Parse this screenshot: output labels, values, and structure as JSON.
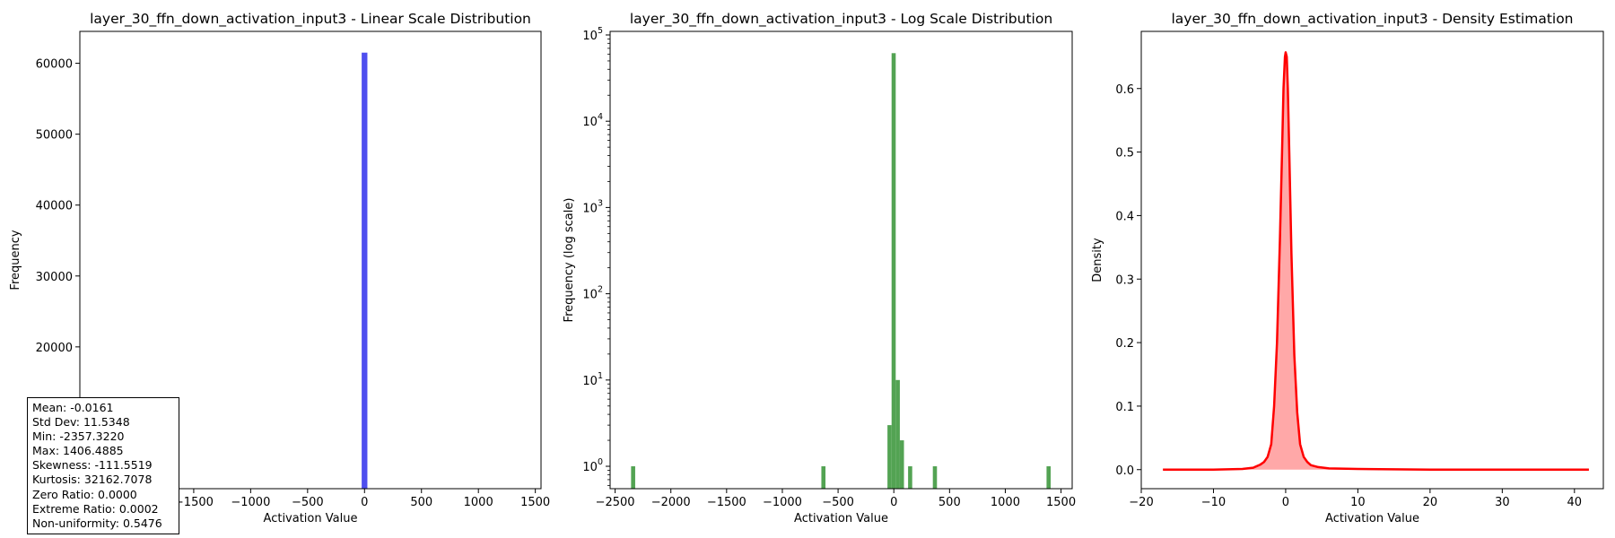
{
  "chart_data": [
    {
      "type": "bar",
      "title": "layer_30_ffn_down_activation_input3 - Linear Scale Distribution",
      "xlabel": "Activation Value",
      "ylabel": "Frequency",
      "xlim": [
        -2500,
        1550
      ],
      "ylim": [
        0,
        64500
      ],
      "xticks": [
        -1500,
        -1000,
        -500,
        0,
        500,
        1000,
        1500
      ],
      "xtick_labels": [
        "−1500",
        "−1000",
        "−500",
        "0",
        "500",
        "1000",
        "1500"
      ],
      "yticks": [
        20000,
        30000,
        40000,
        50000,
        60000
      ],
      "ytick_labels": [
        "20000",
        "30000",
        "40000",
        "50000",
        "60000"
      ],
      "bars": [
        {
          "x0": -25,
          "x1": 25,
          "value": 61500
        }
      ],
      "color": "#4444ee",
      "grid": false
    },
    {
      "type": "bar",
      "title": "layer_30_ffn_down_activation_input3 - Log Scale Distribution",
      "xlabel": "Activation Value",
      "ylabel": "Frequency (log scale)",
      "yscale": "log",
      "xlim": [
        -2545,
        1600
      ],
      "ylim": [
        0.55,
        110000
      ],
      "xticks": [
        -2500,
        -2000,
        -1500,
        -1000,
        -500,
        0,
        500,
        1000,
        1500
      ],
      "xtick_labels": [
        "−2500",
        "−2000",
        "−1500",
        "−1000",
        "−500",
        "0",
        "500",
        "1000",
        "1500"
      ],
      "yticks": [
        1,
        10,
        100,
        1000,
        10000,
        100000
      ],
      "ytick_labels": [
        "10^0",
        "10^1",
        "10^2",
        "10^3",
        "10^4",
        "10^5"
      ],
      "bars": [
        {
          "x0": -2357,
          "x1": -2320,
          "value": 1
        },
        {
          "x0": -650,
          "x1": -613,
          "value": 1
        },
        {
          "x0": -57,
          "x1": -20,
          "value": 3
        },
        {
          "x0": -20,
          "x1": 17,
          "value": 61500
        },
        {
          "x0": 17,
          "x1": 54,
          "value": 10
        },
        {
          "x0": 54,
          "x1": 91,
          "value": 2
        },
        {
          "x0": 128,
          "x1": 165,
          "value": 1
        },
        {
          "x0": 350,
          "x1": 387,
          "value": 1
        },
        {
          "x0": 1370,
          "x1": 1407,
          "value": 1
        }
      ],
      "color": "#4a9e4a",
      "grid": false
    },
    {
      "type": "area",
      "title": "layer_30_ffn_down_activation_input3 - Density Estimation",
      "xlabel": "Activation Value",
      "ylabel": "Density",
      "xlim": [
        -20,
        44
      ],
      "ylim": [
        -0.03,
        0.69
      ],
      "xticks": [
        -20,
        -10,
        0,
        10,
        20,
        30,
        40
      ],
      "xtick_labels": [
        "−20",
        "−10",
        "0",
        "10",
        "20",
        "30",
        "40"
      ],
      "yticks": [
        0.0,
        0.1,
        0.2,
        0.3,
        0.4,
        0.5,
        0.6
      ],
      "ytick_labels": [
        "0.0",
        "0.1",
        "0.2",
        "0.3",
        "0.4",
        "0.5",
        "0.6"
      ],
      "x": [
        -17,
        -10,
        -6,
        -4.5,
        -3.5,
        -3,
        -2.5,
        -2,
        -1.6,
        -1.2,
        -0.8,
        -0.5,
        -0.3,
        -0.1,
        0,
        0.15,
        0.3,
        0.5,
        0.8,
        1.2,
        1.6,
        2,
        2.5,
        3,
        3.5,
        4.5,
        6,
        10,
        20,
        30,
        42
      ],
      "y": [
        0,
        0,
        0.001,
        0.003,
        0.008,
        0.012,
        0.02,
        0.04,
        0.1,
        0.2,
        0.36,
        0.5,
        0.6,
        0.65,
        0.657,
        0.65,
        0.6,
        0.5,
        0.34,
        0.18,
        0.09,
        0.04,
        0.02,
        0.012,
        0.007,
        0.004,
        0.002,
        0.001,
        0,
        0,
        0
      ],
      "color": "#ff0000",
      "fill_color": "#ff9999",
      "grid": false
    }
  ],
  "stats": [
    "Mean: -0.0161",
    "Std Dev: 11.5348",
    "Min: -2357.3220",
    "Max: 1406.4885",
    "Skewness: -111.5519",
    "Kurtosis: 32162.7078",
    "Zero Ratio: 0.0000",
    "Extreme Ratio: 0.0002",
    "Non-uniformity: 0.5476"
  ]
}
